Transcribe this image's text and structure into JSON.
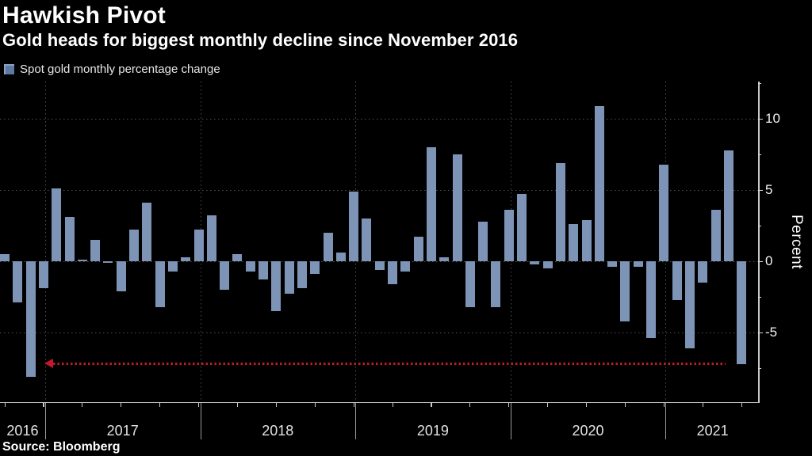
{
  "header": {
    "title": "Hawkish Pivot",
    "subtitle": "Gold heads for biggest monthly decline since November 2016"
  },
  "legend": {
    "label": "Spot gold monthly percentage change",
    "swatch_color": "#5e79a3"
  },
  "source": "Source: Bloomberg",
  "axes": {
    "y_label": "Percent",
    "y_major_ticks": [
      10,
      5,
      0,
      -5
    ],
    "y_minor_ticks": [
      12.5,
      7.5,
      2.5,
      -2.5,
      -7.5
    ],
    "y_range": [
      -10,
      12.6
    ],
    "x_year_labels": [
      "2016",
      "2017",
      "2018",
      "2019",
      "2020",
      "2021"
    ]
  },
  "annotation": {
    "shape": "dotted-arrow-pointing-left",
    "color": "#c11a2b",
    "y_value": -7.2,
    "from": "2021-06",
    "to": "2016-11"
  },
  "chart_data": {
    "type": "bar",
    "title": "Hawkish Pivot",
    "series_name": "Spot gold monthly percentage change",
    "bar_color": "#7d94b6",
    "grid_values": [
      10,
      5,
      0,
      -5
    ],
    "ylim": [
      -10,
      12.6
    ],
    "x": [
      "2016-09",
      "2016-10",
      "2016-11",
      "2016-12",
      "2017-01",
      "2017-02",
      "2017-03",
      "2017-04",
      "2017-05",
      "2017-06",
      "2017-07",
      "2017-08",
      "2017-09",
      "2017-10",
      "2017-11",
      "2017-12",
      "2018-01",
      "2018-02",
      "2018-03",
      "2018-04",
      "2018-05",
      "2018-06",
      "2018-07",
      "2018-08",
      "2018-09",
      "2018-10",
      "2018-11",
      "2018-12",
      "2019-01",
      "2019-02",
      "2019-03",
      "2019-04",
      "2019-05",
      "2019-06",
      "2019-07",
      "2019-08",
      "2019-09",
      "2019-10",
      "2019-11",
      "2019-12",
      "2020-01",
      "2020-02",
      "2020-03",
      "2020-04",
      "2020-05",
      "2020-06",
      "2020-07",
      "2020-08",
      "2020-09",
      "2020-10",
      "2020-11",
      "2020-12",
      "2021-01",
      "2021-02",
      "2021-03",
      "2021-04",
      "2021-05",
      "2021-06"
    ],
    "values": [
      0.5,
      -2.9,
      -8.1,
      -1.9,
      5.1,
      3.1,
      0.1,
      1.5,
      -0.1,
      -2.1,
      2.2,
      4.1,
      -3.2,
      -0.7,
      0.3,
      2.2,
      3.2,
      -2.0,
      0.5,
      -0.7,
      -1.3,
      -3.5,
      -2.3,
      -1.9,
      -0.9,
      2.0,
      0.6,
      4.9,
      3.0,
      -0.6,
      -1.6,
      -0.7,
      1.7,
      8.0,
      0.3,
      7.5,
      -3.2,
      2.8,
      -3.2,
      3.6,
      4.7,
      -0.2,
      -0.5,
      6.9,
      2.6,
      2.9,
      10.9,
      -0.4,
      -4.2,
      -0.4,
      -5.4,
      6.8,
      -2.7,
      -6.1,
      -1.5,
      3.6,
      7.8,
      -7.2
    ],
    "year_groups": [
      {
        "label": "2016",
        "months": 4
      },
      {
        "label": "2017",
        "months": 12
      },
      {
        "label": "2018",
        "months": 12
      },
      {
        "label": "2019",
        "months": 12
      },
      {
        "label": "2020",
        "months": 12
      },
      {
        "label": "2021",
        "months": 6
      }
    ]
  }
}
